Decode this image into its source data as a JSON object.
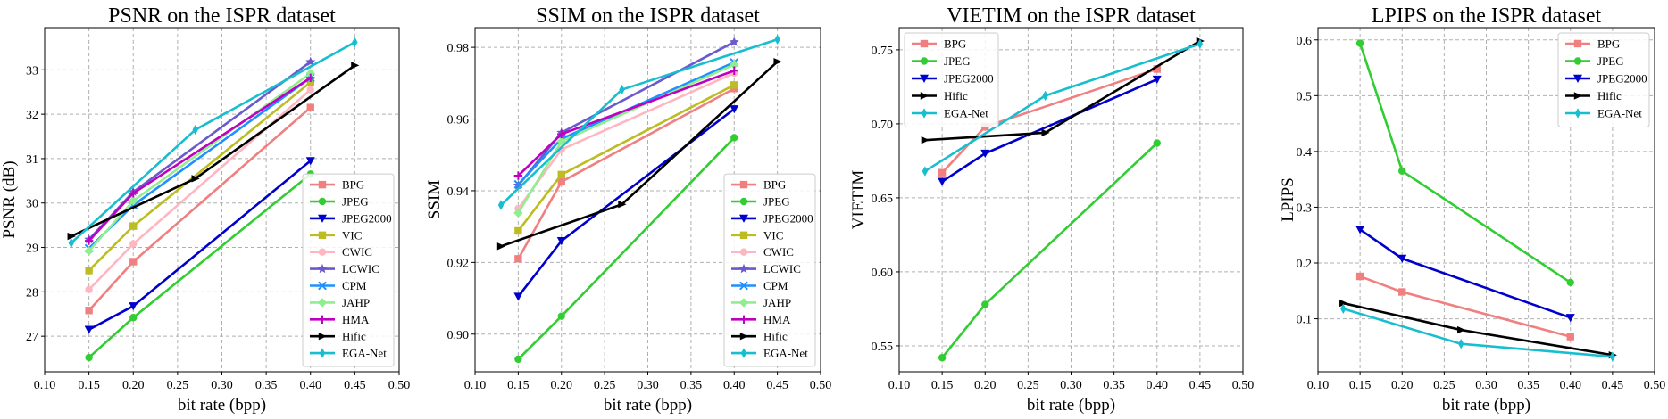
{
  "colors": {
    "BPG": "#f08080",
    "JPEG": "#32cd32",
    "JPEG2000": "#0000cd",
    "VIC": "#bcbd22",
    "CWIC": "#ffb6c1",
    "LCWIC": "#6a5acd",
    "CPM": "#1e90ff",
    "JAHP": "#90ee90",
    "HMA": "#c000c0",
    "Hific": "#000000",
    "EGA-Net": "#17becf"
  },
  "markers": {
    "BPG": "square",
    "JPEG": "circle",
    "JPEG2000": "triangle-down",
    "VIC": "square",
    "CWIC": "circle",
    "LCWIC": "star",
    "CPM": "x",
    "JAHP": "diamond",
    "HMA": "plus",
    "Hific": "triangle-right",
    "EGA-Net": "thin-diamond"
  },
  "chart_data": [
    {
      "type": "line",
      "title": "PSNR on the ISPR dataset",
      "xlabel": "bit rate (bpp)",
      "ylabel": "PSNR (dB)",
      "xlim": [
        0.1,
        0.5
      ],
      "ylim": [
        26.2,
        33.95
      ],
      "xticks": [
        "0.10",
        "0.15",
        "0.20",
        "0.25",
        "0.30",
        "0.35",
        "0.40",
        "0.45",
        "0.50"
      ],
      "yticks": [
        "27",
        "28",
        "29",
        "30",
        "31",
        "32",
        "33"
      ],
      "grid": true,
      "legend_position": "lower-right",
      "series": [
        {
          "name": "BPG",
          "x": [
            0.15,
            0.2,
            0.4
          ],
          "y": [
            27.58,
            28.68,
            32.15
          ]
        },
        {
          "name": "JPEG",
          "x": [
            0.15,
            0.2,
            0.4
          ],
          "y": [
            26.52,
            27.42,
            30.65
          ]
        },
        {
          "name": "JPEG2000",
          "x": [
            0.15,
            0.2,
            0.4
          ],
          "y": [
            27.15,
            27.68,
            30.95
          ]
        },
        {
          "name": "VIC",
          "x": [
            0.15,
            0.2,
            0.4
          ],
          "y": [
            28.48,
            29.48,
            32.72
          ]
        },
        {
          "name": "CWIC",
          "x": [
            0.15,
            0.2,
            0.4
          ],
          "y": [
            28.05,
            29.08,
            32.55
          ]
        },
        {
          "name": "LCWIC",
          "x": [
            0.15,
            0.2,
            0.4
          ],
          "y": [
            29.18,
            30.25,
            33.18
          ]
        },
        {
          "name": "CPM",
          "x": [
            0.15,
            0.2,
            0.4
          ],
          "y": [
            28.98,
            29.95,
            32.82
          ]
        },
        {
          "name": "JAHP",
          "x": [
            0.15,
            0.2,
            0.4
          ],
          "y": [
            28.92,
            30.05,
            32.92
          ]
        },
        {
          "name": "HMA",
          "x": [
            0.15,
            0.2,
            0.4
          ],
          "y": [
            29.15,
            30.22,
            32.82
          ]
        },
        {
          "name": "Hific",
          "x": [
            0.13,
            0.27,
            0.45
          ],
          "y": [
            29.25,
            30.55,
            33.1
          ]
        },
        {
          "name": "EGA-Net",
          "x": [
            0.13,
            0.27,
            0.45
          ],
          "y": [
            29.1,
            31.65,
            33.62
          ]
        }
      ]
    },
    {
      "type": "line",
      "title": "SSIM on the ISPR dataset",
      "xlabel": "bit rate (bpp)",
      "ylabel": "SSIM",
      "xlim": [
        0.1,
        0.5
      ],
      "ylim": [
        0.8895,
        0.9855
      ],
      "xticks": [
        "0.10",
        "0.15",
        "0.20",
        "0.25",
        "0.30",
        "0.35",
        "0.40",
        "0.45",
        "0.50"
      ],
      "yticks": [
        "0.90",
        "0.92",
        "0.94",
        "0.96",
        "0.98"
      ],
      "grid": true,
      "legend_position": "lower-right",
      "series": [
        {
          "name": "BPG",
          "x": [
            0.15,
            0.2,
            0.4
          ],
          "y": [
            0.921,
            0.9425,
            0.9685
          ]
        },
        {
          "name": "JPEG",
          "x": [
            0.15,
            0.2,
            0.4
          ],
          "y": [
            0.893,
            0.905,
            0.9548
          ]
        },
        {
          "name": "JPEG2000",
          "x": [
            0.15,
            0.2,
            0.4
          ],
          "y": [
            0.9105,
            0.926,
            0.9628
          ]
        },
        {
          "name": "VIC",
          "x": [
            0.15,
            0.2,
            0.4
          ],
          "y": [
            0.9288,
            0.9445,
            0.9695
          ]
        },
        {
          "name": "CWIC",
          "x": [
            0.15,
            0.2,
            0.4
          ],
          "y": [
            0.935,
            0.9515,
            0.9728
          ]
        },
        {
          "name": "LCWIC",
          "x": [
            0.15,
            0.2,
            0.4
          ],
          "y": [
            0.9415,
            0.9562,
            0.9815
          ]
        },
        {
          "name": "CPM",
          "x": [
            0.15,
            0.2,
            0.4
          ],
          "y": [
            0.9418,
            0.9545,
            0.9758
          ]
        },
        {
          "name": "JAHP",
          "x": [
            0.15,
            0.2,
            0.4
          ],
          "y": [
            0.9338,
            0.9538,
            0.9752
          ]
        },
        {
          "name": "HMA",
          "x": [
            0.15,
            0.2,
            0.4
          ],
          "y": [
            0.9442,
            0.9558,
            0.9735
          ]
        },
        {
          "name": "Hific",
          "x": [
            0.13,
            0.27,
            0.45
          ],
          "y": [
            0.9245,
            0.9362,
            0.976
          ]
        },
        {
          "name": "EGA-Net",
          "x": [
            0.13,
            0.27,
            0.45
          ],
          "y": [
            0.936,
            0.9682,
            0.9822
          ]
        }
      ]
    },
    {
      "type": "line",
      "title": "VIETIM on the ISPR dataset",
      "xlabel": "bit rate (bpp)",
      "ylabel": "VIETIM",
      "xlim": [
        0.1,
        0.5
      ],
      "ylim": [
        0.5325,
        0.765
      ],
      "xticks": [
        "0.10",
        "0.15",
        "0.20",
        "0.25",
        "0.30",
        "0.35",
        "0.40",
        "0.45",
        "0.50"
      ],
      "yticks": [
        "0.55",
        "0.60",
        "0.65",
        "0.70",
        "0.75"
      ],
      "grid": true,
      "legend_position": "upper-left",
      "series": [
        {
          "name": "BPG",
          "x": [
            0.15,
            0.2,
            0.4
          ],
          "y": [
            0.667,
            0.698,
            0.737
          ]
        },
        {
          "name": "JPEG",
          "x": [
            0.15,
            0.2,
            0.4
          ],
          "y": [
            0.542,
            0.578,
            0.687
          ]
        },
        {
          "name": "JPEG2000",
          "x": [
            0.15,
            0.2,
            0.4
          ],
          "y": [
            0.661,
            0.68,
            0.73
          ]
        },
        {
          "name": "Hific",
          "x": [
            0.13,
            0.27,
            0.45
          ],
          "y": [
            0.689,
            0.694,
            0.756
          ]
        },
        {
          "name": "EGA-Net",
          "x": [
            0.13,
            0.27,
            0.45
          ],
          "y": [
            0.668,
            0.719,
            0.754
          ]
        }
      ]
    },
    {
      "type": "line",
      "title": "LPIPS on the ISPR dataset",
      "xlabel": "bit rate (bpp)",
      "ylabel": "LPIPS",
      "xlim": [
        0.1,
        0.5
      ],
      "ylim": [
        0.005,
        0.622
      ],
      "xticks": [
        "0.10",
        "0.15",
        "0.20",
        "0.25",
        "0.30",
        "0.35",
        "0.40",
        "0.45",
        "0.50"
      ],
      "yticks": [
        "0.1",
        "0.2",
        "0.3",
        "0.4",
        "0.5",
        "0.6"
      ],
      "grid": true,
      "legend_position": "upper-right",
      "series": [
        {
          "name": "BPG",
          "x": [
            0.15,
            0.2,
            0.4
          ],
          "y": [
            0.176,
            0.148,
            0.068
          ]
        },
        {
          "name": "JPEG",
          "x": [
            0.15,
            0.2,
            0.4
          ],
          "y": [
            0.594,
            0.365,
            0.165
          ]
        },
        {
          "name": "JPEG2000",
          "x": [
            0.15,
            0.2,
            0.4
          ],
          "y": [
            0.26,
            0.208,
            0.102
          ]
        },
        {
          "name": "Hific",
          "x": [
            0.13,
            0.27,
            0.45
          ],
          "y": [
            0.128,
            0.08,
            0.035
          ]
        },
        {
          "name": "EGA-Net",
          "x": [
            0.13,
            0.27,
            0.45
          ],
          "y": [
            0.118,
            0.055,
            0.032
          ]
        }
      ]
    }
  ]
}
